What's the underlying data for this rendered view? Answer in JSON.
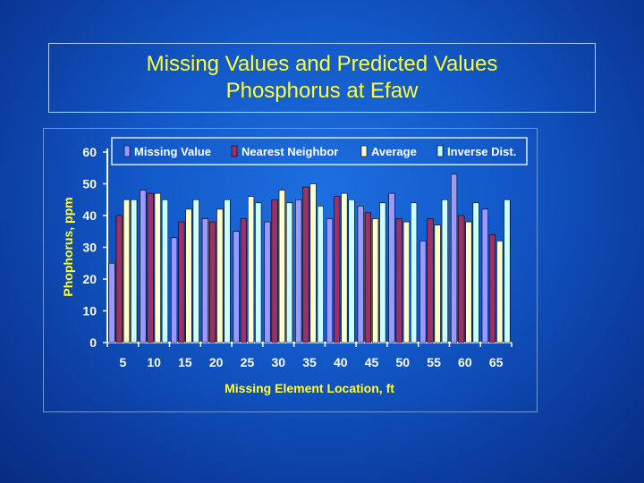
{
  "title": {
    "line1": "Missing Values and Predicted Values",
    "line2": "Phosphorus at Efaw"
  },
  "chart_data": {
    "type": "bar",
    "xlabel": "Missing Element Location, ft",
    "ylabel": "Phophorus, ppm",
    "ylim": [
      0,
      60
    ],
    "yticks": [
      0,
      10,
      20,
      30,
      40,
      50,
      60
    ],
    "legend_position": "top",
    "grid": false,
    "categories": [
      "5",
      "10",
      "15",
      "20",
      "25",
      "30",
      "35",
      "40",
      "45",
      "50",
      "55",
      "60",
      "65"
    ],
    "series": [
      {
        "name": "Missing Value",
        "color": "#9999ff",
        "values": [
          25,
          48,
          33,
          39,
          35,
          38,
          45,
          39,
          43,
          47,
          32,
          53,
          42
        ]
      },
      {
        "name": "Nearest Neighbor",
        "color": "#993366",
        "values": [
          40,
          47,
          38,
          38,
          39,
          45,
          49,
          46,
          41,
          39,
          39,
          40,
          34
        ]
      },
      {
        "name": "Average",
        "color": "#ffffcc",
        "values": [
          45,
          47,
          42,
          42,
          46,
          48,
          50,
          47,
          39,
          38,
          37,
          38,
          32
        ]
      },
      {
        "name": "Inverse Dist.",
        "color": "#ccffff",
        "values": [
          45,
          45,
          45,
          45,
          44,
          44,
          43,
          45,
          44,
          44,
          45,
          44,
          45
        ]
      }
    ]
  },
  "colors": {
    "text": "#ffff33",
    "axis": "#ffffff",
    "legend_text": "#ffffff",
    "tick_text": "#ffffff",
    "axis_label": "#ffff33"
  }
}
